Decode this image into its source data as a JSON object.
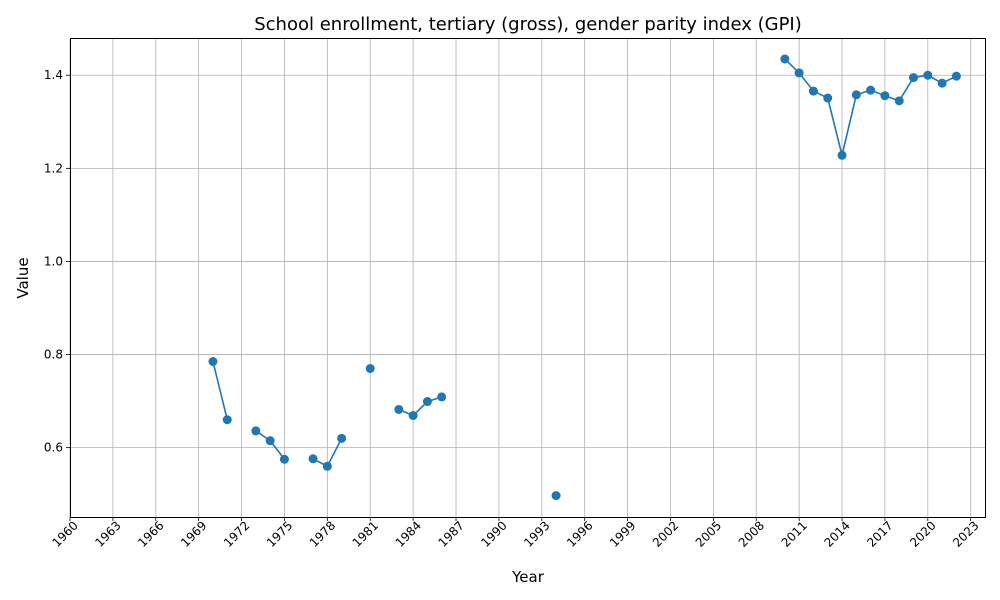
{
  "chart_data": {
    "type": "line",
    "title": "School enrollment, tertiary (gross), gender parity index (GPI)",
    "xlabel": "Year",
    "ylabel": "Value",
    "xlim": [
      1960,
      2024
    ],
    "ylim": [
      0.451,
      1.48
    ],
    "x_ticks": [
      1960,
      1963,
      1966,
      1969,
      1972,
      1975,
      1978,
      1981,
      1984,
      1987,
      1990,
      1993,
      1996,
      1999,
      2002,
      2005,
      2008,
      2011,
      2014,
      2017,
      2020,
      2023
    ],
    "y_ticks": [
      0.6,
      0.8,
      1.0,
      1.2,
      1.4
    ],
    "grid": true,
    "color": "#1f77b4",
    "series": [
      {
        "points": [
          [
            1970,
            0.785
          ],
          [
            1971,
            0.66
          ],
          [
            1972,
            null
          ],
          [
            1973,
            0.636
          ],
          [
            1974,
            0.615
          ],
          [
            1975,
            0.575
          ],
          [
            1976,
            null
          ],
          [
            1977,
            0.576
          ],
          [
            1978,
            0.56
          ],
          [
            1979,
            0.62
          ],
          [
            1980,
            null
          ],
          [
            1981,
            0.77
          ],
          [
            1982,
            null
          ],
          [
            1983,
            0.682
          ],
          [
            1984,
            0.669
          ],
          [
            1985,
            0.699
          ],
          [
            1986,
            0.709
          ],
          [
            1987,
            null
          ],
          [
            1994,
            0.497
          ],
          [
            1995,
            null
          ],
          [
            2010,
            1.435
          ],
          [
            2011,
            1.405
          ],
          [
            2012,
            1.366
          ],
          [
            2013,
            1.351
          ],
          [
            2014,
            1.228
          ],
          [
            2015,
            1.358
          ],
          [
            2016,
            1.368
          ],
          [
            2017,
            1.356
          ],
          [
            2018,
            1.345
          ],
          [
            2019,
            1.395
          ],
          [
            2020,
            1.4
          ],
          [
            2021,
            1.383
          ],
          [
            2022,
            1.398
          ]
        ]
      }
    ]
  }
}
